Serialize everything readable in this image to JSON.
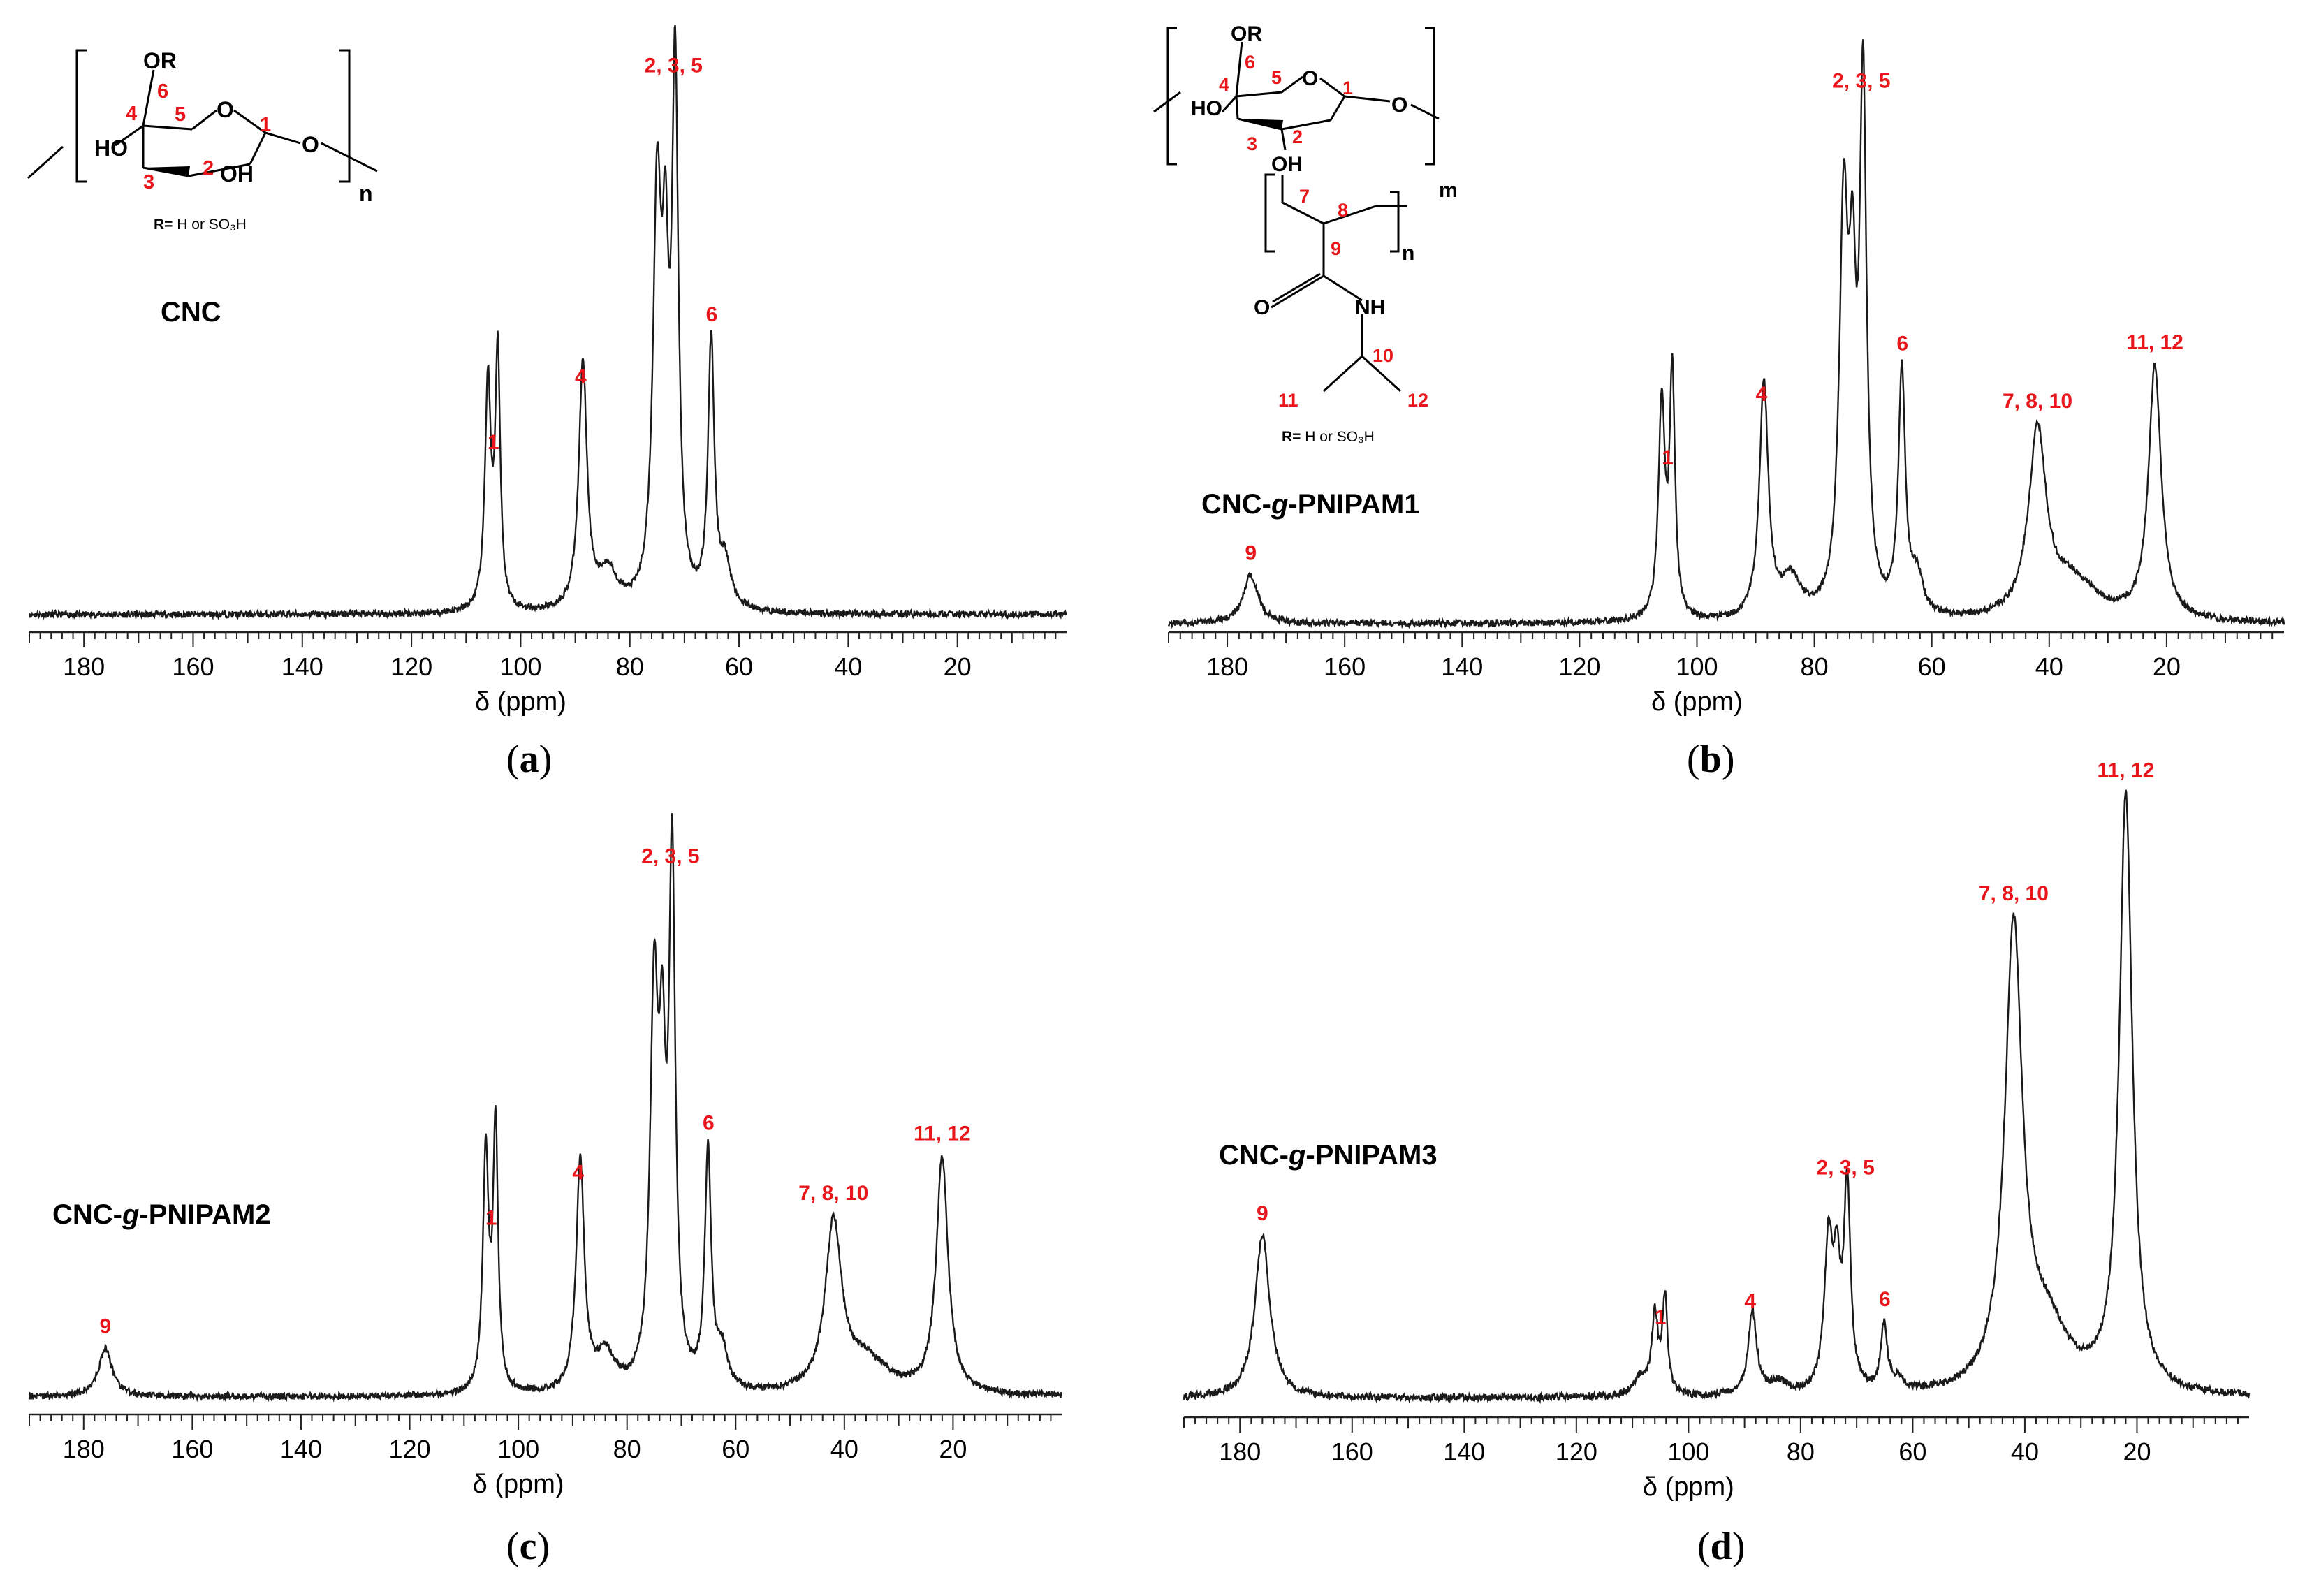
{
  "colors": {
    "spectrum": "#1a1a1a",
    "peak_label": "#e8151b",
    "axis": "#222222"
  },
  "structures": {
    "cnc": {
      "groups": {
        "or": "OR",
        "ho": "HO",
        "oh": "OH",
        "o_ring": "O",
        "o_link": "O",
        "sub_n": "n"
      },
      "locants": [
        "1",
        "2",
        "3",
        "4",
        "5",
        "6"
      ],
      "r_def_prefix": "R=",
      "r_def_text": " H or SO₃H"
    },
    "grafted": {
      "groups": {
        "or": "OR",
        "ho": "HO",
        "oh": "OH",
        "o_ring": "O",
        "o_link": "O",
        "sub_m": "m",
        "sub_n": "n",
        "o_carbonyl": "O",
        "nh": "NH"
      },
      "locants": [
        "1",
        "2",
        "3",
        "4",
        "5",
        "6",
        "7",
        "8",
        "9",
        "10",
        "11",
        "12"
      ],
      "r_def_prefix": "R=",
      "r_def_text": " H or SO₃H"
    }
  },
  "chart_data": [
    {
      "type": "line",
      "panel": "(a)",
      "panel_letter": "a",
      "sample": "CNC",
      "xlabel": "δ (ppm)",
      "xlim": [
        190,
        0
      ],
      "x_axis_reversed": true,
      "ticks": [
        180,
        160,
        140,
        120,
        100,
        80,
        60,
        40,
        20
      ],
      "tick_labels": [
        "180",
        "160",
        "140",
        "120",
        "100",
        "80",
        "60",
        "40",
        "20"
      ],
      "y_visible": false,
      "relative_intensity_units": "relative to tallest peak = 1",
      "peaks": [
        {
          "label": "1",
          "x": 105.0,
          "y": 0.52
        },
        {
          "label": "4",
          "x": 89.0,
          "y": 0.46
        },
        {
          "label": "2, 3, 5",
          "x": 72.0,
          "y": 1.0
        },
        {
          "label": "6",
          "x": 65.0,
          "y": 0.52
        }
      ],
      "components": [
        [
          106,
          0.42,
          0.65
        ],
        [
          104.2,
          0.47,
          0.55
        ],
        [
          88.6,
          0.46,
          0.9
        ],
        [
          84,
          0.07,
          2.0
        ],
        [
          75,
          0.74,
          0.9
        ],
        [
          73.5,
          0.5,
          0.7
        ],
        [
          71.7,
          0.97,
          0.7
        ],
        [
          65.1,
          0.49,
          0.7
        ],
        [
          62.5,
          0.08,
          1.2
        ]
      ]
    },
    {
      "type": "line",
      "panel": "(b)",
      "panel_letter": "b",
      "sample": "CNC-g-PNIPAM1",
      "sample_parts": [
        "CNC-",
        "g",
        "-PNIPAM1"
      ],
      "xlabel": "δ (ppm)",
      "xlim": [
        190,
        0
      ],
      "x_axis_reversed": true,
      "ticks": [
        180,
        160,
        140,
        120,
        100,
        80,
        60,
        40,
        20
      ],
      "tick_labels": [
        "180",
        "160",
        "140",
        "120",
        "100",
        "80",
        "60",
        "40",
        "20"
      ],
      "y_visible": false,
      "relative_intensity_units": "relative to tallest peak = 1",
      "peaks": [
        {
          "label": "9",
          "x": 176.0,
          "y": 0.1
        },
        {
          "label": "1",
          "x": 105.0,
          "y": 0.5
        },
        {
          "label": "4",
          "x": 89.0,
          "y": 0.45
        },
        {
          "label": "2, 3, 5",
          "x": 72.0,
          "y": 1.0
        },
        {
          "label": "6",
          "x": 65.0,
          "y": 0.48
        },
        {
          "label": "7, 8, 10",
          "x": 42.0,
          "y": 0.37
        },
        {
          "label": "11, 12",
          "x": 22.0,
          "y": 0.47
        }
      ],
      "components": [
        [
          176,
          0.09,
          1.5
        ],
        [
          106,
          0.4,
          0.65
        ],
        [
          104.2,
          0.45,
          0.55
        ],
        [
          88.6,
          0.44,
          0.9
        ],
        [
          84,
          0.07,
          2.0
        ],
        [
          75,
          0.72,
          0.9
        ],
        [
          73.5,
          0.48,
          0.7
        ],
        [
          71.7,
          0.96,
          0.7
        ],
        [
          65.1,
          0.45,
          0.7
        ],
        [
          62.5,
          0.07,
          1.2
        ],
        [
          42,
          0.34,
          1.8
        ],
        [
          36,
          0.07,
          5.0
        ],
        [
          22,
          0.47,
          1.3
        ]
      ]
    },
    {
      "type": "line",
      "panel": "(c)",
      "panel_letter": "c",
      "sample": "CNC-g-PNIPAM2",
      "sample_parts": [
        "CNC-",
        "g",
        "-PNIPAM2"
      ],
      "xlabel": "δ (ppm)",
      "xlim": [
        190,
        0
      ],
      "x_axis_reversed": true,
      "ticks": [
        180,
        160,
        140,
        120,
        100,
        80,
        60,
        40,
        20
      ],
      "tick_labels": [
        "180",
        "160",
        "140",
        "120",
        "100",
        "80",
        "60",
        "40",
        "20"
      ],
      "y_visible": false,
      "relative_intensity_units": "relative to tallest peak = 1",
      "peaks": [
        {
          "label": "9",
          "x": 176.0,
          "y": 0.09
        },
        {
          "label": "1",
          "x": 105.0,
          "y": 0.54
        },
        {
          "label": "4",
          "x": 89.0,
          "y": 0.45
        },
        {
          "label": "2, 3, 5",
          "x": 72.0,
          "y": 1.0
        },
        {
          "label": "6",
          "x": 65.0,
          "y": 0.47
        },
        {
          "label": "7, 8, 10",
          "x": 42.0,
          "y": 0.34
        },
        {
          "label": "11, 12",
          "x": 22.0,
          "y": 0.44
        }
      ],
      "components": [
        [
          176,
          0.09,
          1.5
        ],
        [
          106,
          0.44,
          0.65
        ],
        [
          104.2,
          0.49,
          0.55
        ],
        [
          88.6,
          0.43,
          0.9
        ],
        [
          84,
          0.07,
          2.0
        ],
        [
          75,
          0.71,
          0.9
        ],
        [
          73.5,
          0.48,
          0.7
        ],
        [
          71.7,
          0.96,
          0.7
        ],
        [
          65.1,
          0.44,
          0.7
        ],
        [
          62.5,
          0.07,
          1.2
        ],
        [
          42,
          0.31,
          1.8
        ],
        [
          36,
          0.06,
          5.0
        ],
        [
          22,
          0.44,
          1.3
        ]
      ]
    },
    {
      "type": "line",
      "panel": "(d)",
      "panel_letter": "d",
      "sample": "CNC-g-PNIPAM3",
      "sample_parts": [
        "CNC-",
        "g",
        "-PNIPAM3"
      ],
      "xlabel": "δ (ppm)",
      "xlim": [
        190,
        0
      ],
      "x_axis_reversed": true,
      "ticks": [
        180,
        160,
        140,
        120,
        100,
        80,
        60,
        40,
        20
      ],
      "tick_labels": [
        "180",
        "160",
        "140",
        "120",
        "100",
        "80",
        "60",
        "40",
        "20"
      ],
      "y_visible": false,
      "relative_intensity_units": "relative to tallest peak = 1",
      "peaks": [
        {
          "label": "9",
          "x": 176.0,
          "y": 0.27
        },
        {
          "label": "1",
          "x": 105.0,
          "y": 0.19
        },
        {
          "label": "4",
          "x": 89.0,
          "y": 0.14
        },
        {
          "label": "2, 3, 5",
          "x": 72.0,
          "y": 0.36
        },
        {
          "label": "6",
          "x": 65.0,
          "y": 0.11
        },
        {
          "label": "7, 8, 10",
          "x": 42.0,
          "y": 0.8
        },
        {
          "label": "11, 12",
          "x": 22.0,
          "y": 1.0
        }
      ],
      "components": [
        [
          176,
          0.27,
          1.6
        ],
        [
          108.5,
          0.03,
          1.5
        ],
        [
          106,
          0.13,
          0.65
        ],
        [
          104.2,
          0.16,
          0.55
        ],
        [
          88.6,
          0.14,
          0.9
        ],
        [
          84,
          0.02,
          2.0
        ],
        [
          75,
          0.25,
          0.9
        ],
        [
          73.5,
          0.17,
          0.7
        ],
        [
          71.7,
          0.34,
          0.7
        ],
        [
          65.1,
          0.11,
          0.7
        ],
        [
          62.5,
          0.02,
          1.2
        ],
        [
          42,
          0.76,
          1.9
        ],
        [
          36,
          0.1,
          4.5
        ],
        [
          22,
          0.99,
          1.4
        ]
      ]
    }
  ]
}
